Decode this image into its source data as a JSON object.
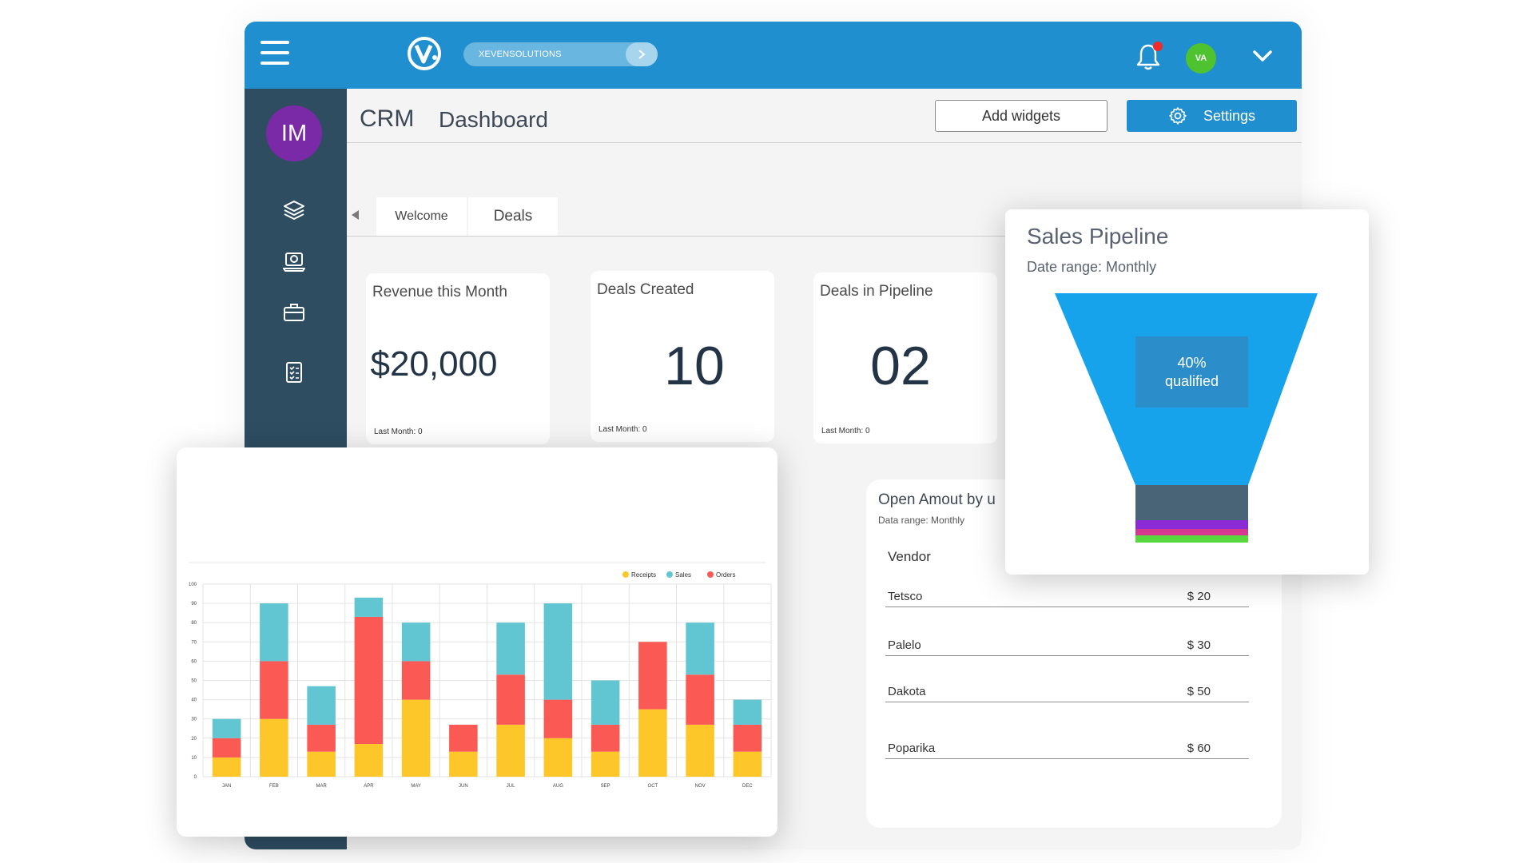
{
  "topbar": {
    "org_name": "XEVENSOLUTIONS",
    "user_initials": "VA"
  },
  "sidebar": {
    "profile_initials": "IM",
    "items": [
      {
        "icon": "layers-icon"
      },
      {
        "icon": "support-laptop-icon"
      },
      {
        "icon": "briefcase-icon"
      },
      {
        "icon": "clipboard-checklist-icon"
      }
    ]
  },
  "header": {
    "title": "CRM",
    "subtitle": "Dashboard",
    "add_widgets_label": "Add widgets",
    "settings_label": "Settings"
  },
  "tabs": [
    {
      "label": "Welcome"
    },
    {
      "label": "Deals"
    }
  ],
  "kpis": [
    {
      "label": "Revenue this Month",
      "value": "$20,000",
      "footer": "Last Month: 0"
    },
    {
      "label": "Deals Created",
      "value": "10",
      "footer": "Last Month: 0"
    },
    {
      "label": "Deals in Pipeline",
      "value": "02",
      "footer": "Last Month: 0"
    }
  ],
  "vendor_table": {
    "title": "Open Amout by u",
    "subtitle": "Data range: Monthly",
    "column": "Vendor",
    "rows": [
      {
        "name": "Tetsco",
        "amount": "$ 20"
      },
      {
        "name": "Palelo",
        "amount": "$ 30"
      },
      {
        "name": "Dakota",
        "amount": "$ 50"
      },
      {
        "name": "Poparika",
        "amount": "$ 60"
      }
    ]
  },
  "pipeline": {
    "title": "Sales Pipeline",
    "subtitle": "Date range: Monthly",
    "qualified_percent": "40%",
    "qualified_label": "qualified",
    "stage_colors": [
      "#16a3ec",
      "#4a6477",
      "#8b2bd6",
      "#d6388f",
      "#57d83d"
    ]
  },
  "colors": {
    "topbar": "#1f8fcf",
    "sidebar": "#2e4d61",
    "receipts": "#fdc72a",
    "sales": "#62c6d2",
    "orders": "#fb5a54"
  },
  "chart_data": {
    "type": "bar",
    "stacked": true,
    "categories": [
      "JAN",
      "FEB",
      "MAR",
      "APR",
      "MAY",
      "JUN",
      "JUL",
      "AUG",
      "SEP",
      "OCT",
      "NOV",
      "DEC"
    ],
    "series": [
      {
        "name": "Receipts",
        "values": [
          10,
          30,
          13,
          17,
          40,
          13,
          27,
          20,
          13,
          35,
          27,
          13
        ]
      },
      {
        "name": "Sales",
        "values": [
          10,
          30,
          20,
          10,
          20,
          0,
          27,
          50,
          23,
          0,
          27,
          13
        ]
      },
      {
        "name": "Orders",
        "values": [
          10,
          30,
          14,
          66,
          20,
          14,
          26,
          20,
          14,
          35,
          26,
          14
        ]
      }
    ],
    "stack_order": [
      "Receipts",
      "Orders",
      "Sales"
    ],
    "yticks": [
      0,
      10,
      20,
      30,
      40,
      50,
      60,
      70,
      80,
      90,
      100
    ],
    "ylim": [
      0,
      100
    ],
    "grid": true,
    "legend_position": "top-right"
  }
}
